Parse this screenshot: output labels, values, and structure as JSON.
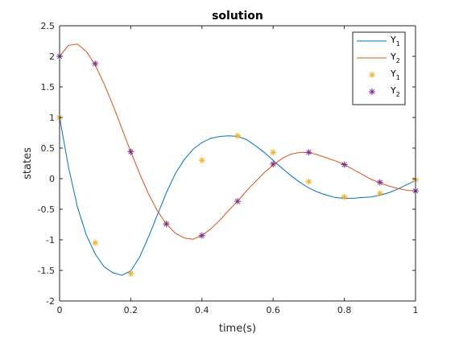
{
  "chart_data": {
    "type": "line",
    "title": "solution",
    "xlabel": "time(s)",
    "ylabel": "states",
    "xlim": [
      0,
      1
    ],
    "ylim": [
      -2,
      2.5
    ],
    "xticks": [
      "0",
      "0.2",
      "0.4",
      "0.6",
      "0.8",
      "1"
    ],
    "xtick_values": [
      0,
      0.2,
      0.4,
      0.6,
      0.8,
      1
    ],
    "yticks": [
      "-2",
      "-1.5",
      "-1",
      "-0.5",
      "0",
      "0.5",
      "1",
      "1.5",
      "2",
      "2.5"
    ],
    "ytick_values": [
      -2,
      -1.5,
      -1,
      -0.5,
      0,
      0.5,
      1,
      1.5,
      2,
      2.5
    ],
    "grid": false,
    "legend_position": "top-right",
    "series": [
      {
        "name": "Y",
        "subscript": "1",
        "kind": "line",
        "color": "#0072BD",
        "x": [
          0,
          0.025,
          0.05,
          0.075,
          0.1,
          0.125,
          0.15,
          0.175,
          0.2,
          0.225,
          0.25,
          0.275,
          0.3,
          0.325,
          0.35,
          0.375,
          0.4,
          0.425,
          0.45,
          0.475,
          0.5,
          0.525,
          0.55,
          0.575,
          0.6,
          0.625,
          0.65,
          0.675,
          0.7,
          0.725,
          0.75,
          0.775,
          0.8,
          0.825,
          0.85,
          0.875,
          0.9,
          0.925,
          0.95,
          0.975,
          1
        ],
        "y": [
          1.0,
          0.19,
          -0.46,
          -0.92,
          -1.23,
          -1.44,
          -1.54,
          -1.58,
          -1.51,
          -1.28,
          -0.95,
          -0.59,
          -0.23,
          0.08,
          0.31,
          0.48,
          0.59,
          0.66,
          0.69,
          0.7,
          0.69,
          0.64,
          0.54,
          0.43,
          0.3,
          0.17,
          0.05,
          -0.06,
          -0.15,
          -0.22,
          -0.27,
          -0.31,
          -0.32,
          -0.32,
          -0.31,
          -0.3,
          -0.27,
          -0.23,
          -0.17,
          -0.1,
          -0.03
        ]
      },
      {
        "name": "Y",
        "subscript": "2",
        "kind": "line",
        "color": "#D95319",
        "x": [
          0,
          0.025,
          0.05,
          0.075,
          0.1,
          0.125,
          0.15,
          0.175,
          0.2,
          0.225,
          0.25,
          0.275,
          0.3,
          0.325,
          0.35,
          0.375,
          0.4,
          0.425,
          0.45,
          0.475,
          0.5,
          0.525,
          0.55,
          0.575,
          0.6,
          0.625,
          0.65,
          0.675,
          0.7,
          0.725,
          0.75,
          0.775,
          0.8,
          0.825,
          0.85,
          0.875,
          0.9,
          0.925,
          0.95,
          0.975,
          1
        ],
        "y": [
          2.0,
          2.18,
          2.2,
          2.08,
          1.86,
          1.55,
          1.2,
          0.82,
          0.44,
          0.08,
          -0.25,
          -0.53,
          -0.74,
          -0.89,
          -0.97,
          -0.99,
          -0.93,
          -0.82,
          -0.68,
          -0.52,
          -0.37,
          -0.2,
          -0.05,
          0.1,
          0.22,
          0.33,
          0.4,
          0.43,
          0.43,
          0.39,
          0.34,
          0.29,
          0.23,
          0.15,
          0.07,
          -0.01,
          -0.07,
          -0.12,
          -0.16,
          -0.19,
          -0.2
        ]
      },
      {
        "name": "Y",
        "subscript": "1",
        "kind": "markers",
        "marker": "*",
        "color": "#EDB120",
        "x": [
          0,
          0.1,
          0.2,
          0.3,
          0.4,
          0.5,
          0.6,
          0.7,
          0.8,
          0.9,
          1
        ],
        "y": [
          1.0,
          -1.05,
          -1.55,
          -0.74,
          0.3,
          0.7,
          0.43,
          -0.05,
          -0.3,
          -0.24,
          -0.02
        ]
      },
      {
        "name": "Y",
        "subscript": "2",
        "kind": "markers",
        "marker": "*",
        "color": "#7E2F8E",
        "x": [
          0,
          0.1,
          0.2,
          0.3,
          0.4,
          0.5,
          0.6,
          0.7,
          0.8,
          0.9,
          1
        ],
        "y": [
          2.0,
          1.88,
          0.44,
          -0.74,
          -0.93,
          -0.37,
          0.24,
          0.43,
          0.23,
          -0.06,
          -0.2
        ]
      }
    ]
  }
}
